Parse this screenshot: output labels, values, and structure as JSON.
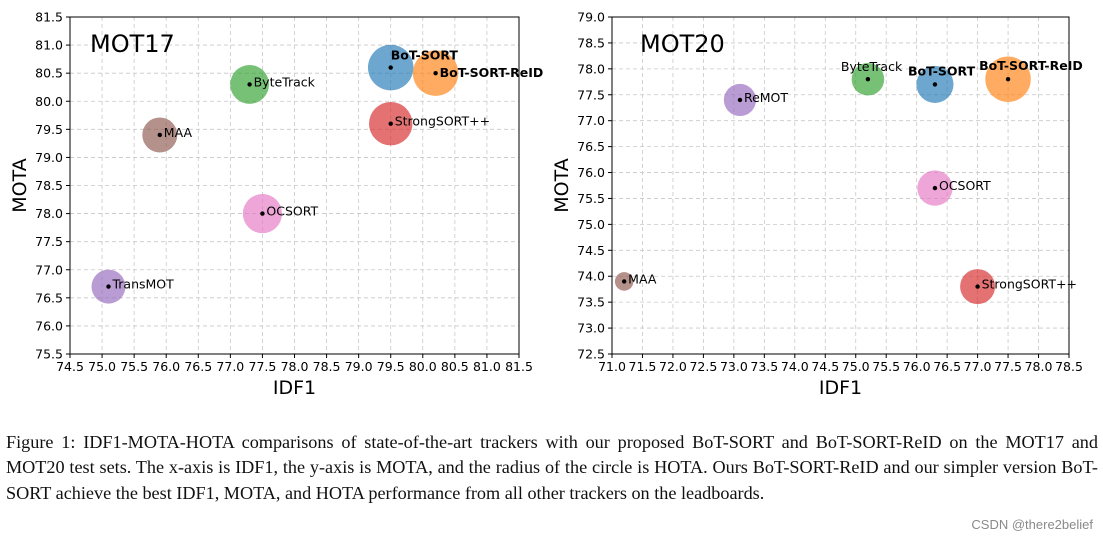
{
  "chart_data": [
    {
      "type": "scatter",
      "title": "MOT17",
      "xlabel": "IDF1",
      "ylabel": "MOTA",
      "xlim": [
        74.5,
        81.5
      ],
      "ylim": [
        75.5,
        81.5
      ],
      "xticks": [
        "74.5",
        "75.0",
        "75.5",
        "76.0",
        "76.5",
        "77.0",
        "77.5",
        "78.0",
        "78.5",
        "79.0",
        "79.5",
        "80.0",
        "80.5",
        "81.0",
        "81.5"
      ],
      "yticks": [
        "75.5",
        "76.0",
        "76.5",
        "77.0",
        "77.5",
        "78.0",
        "78.5",
        "79.0",
        "79.5",
        "80.0",
        "80.5",
        "81.0",
        "81.5"
      ],
      "grid": true,
      "points": [
        {
          "label": "BoT-SORT",
          "x": 79.5,
          "y": 80.6,
          "size": 65.0,
          "color": "#1f77b4",
          "bold": true
        },
        {
          "label": "BoT-SORT-ReID",
          "x": 80.2,
          "y": 80.5,
          "size": 65.0,
          "color": "#ff7f0e",
          "bold": true
        },
        {
          "label": "ByteTrack",
          "x": 77.3,
          "y": 80.3,
          "size": 63.1,
          "color": "#2ca02c",
          "bold": false
        },
        {
          "label": "StrongSORT++",
          "x": 79.5,
          "y": 79.6,
          "size": 64.4,
          "color": "#d62728",
          "bold": false
        },
        {
          "label": "MAA",
          "x": 75.9,
          "y": 79.4,
          "size": 62.0,
          "color": "#8c564b",
          "bold": false
        },
        {
          "label": "OCSORT",
          "x": 77.5,
          "y": 78.0,
          "size": 63.2,
          "color": "#e377c2",
          "bold": false
        },
        {
          "label": "TransMOT",
          "x": 75.1,
          "y": 76.7,
          "size": 61.7,
          "color": "#9467bd",
          "bold": false
        }
      ]
    },
    {
      "type": "scatter",
      "title": "MOT20",
      "xlabel": "IDF1",
      "ylabel": "MOTA",
      "xlim": [
        71.0,
        78.5
      ],
      "ylim": [
        72.5,
        79.0
      ],
      "xticks": [
        "71.0",
        "71.5",
        "72.0",
        "72.5",
        "73.0",
        "73.5",
        "74.0",
        "74.5",
        "75.0",
        "75.5",
        "76.0",
        "76.5",
        "77.0",
        "77.5",
        "78.0",
        "78.5"
      ],
      "yticks": [
        "72.5",
        "73.0",
        "73.5",
        "74.0",
        "74.5",
        "75.0",
        "75.5",
        "76.0",
        "76.5",
        "77.0",
        "77.5",
        "78.0",
        "78.5",
        "79.0"
      ],
      "grid": true,
      "points": [
        {
          "label": "ByteTrack",
          "x": 75.2,
          "y": 77.8,
          "size": 61.3,
          "color": "#2ca02c",
          "bold": false
        },
        {
          "label": "BoT-SORT",
          "x": 76.3,
          "y": 77.7,
          "size": 62.6,
          "color": "#1f77b4",
          "bold": true
        },
        {
          "label": "BoT-SORT-ReID",
          "x": 77.5,
          "y": 77.8,
          "size": 65.0,
          "color": "#ff7f0e",
          "bold": true
        },
        {
          "label": "ReMOT",
          "x": 73.1,
          "y": 77.4,
          "size": 61.2,
          "color": "#9467bd",
          "bold": false
        },
        {
          "label": "OCSORT",
          "x": 76.3,
          "y": 75.7,
          "size": 62.1,
          "color": "#e377c2",
          "bold": false
        },
        {
          "label": "MAA",
          "x": 71.2,
          "y": 73.9,
          "size": 57.3,
          "color": "#8c564b",
          "bold": false
        },
        {
          "label": "StrongSORT++",
          "x": 77.0,
          "y": 73.8,
          "size": 62.0,
          "color": "#d62728",
          "bold": false
        }
      ]
    }
  ],
  "caption": "Figure 1: IDF1-MOTA-HOTA comparisons of state-of-the-art trackers with our proposed BoT-SORT and BoT-SORT-ReID on the MOT17 and MOT20 test sets. The x-axis is IDF1, the y-axis is MOTA, and the radius of the circle is HOTA. Ours BoT-SORT-ReID and our simpler version BoT-SORT achieve the best IDF1, MOTA, and HOTA performance from all other trackers on the leadboards.",
  "watermark": "CSDN @there2belief"
}
